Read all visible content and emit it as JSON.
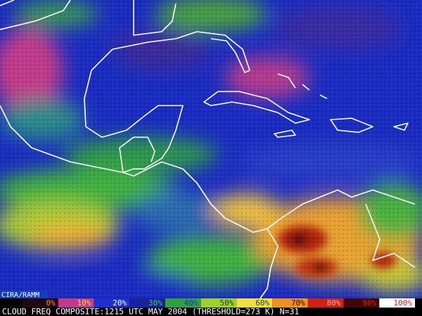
{
  "credit": "CIRA/RAMM",
  "legend": [
    "0%",
    "10%",
    "20%",
    "30%",
    "40%",
    "50%",
    "60%",
    "70%",
    "80%",
    "90%",
    "100%"
  ],
  "caption": "CLOUD FREQ COMPOSITE:1215 UTC MAY 2004 (THRESHOLD=273 K) N=31"
}
